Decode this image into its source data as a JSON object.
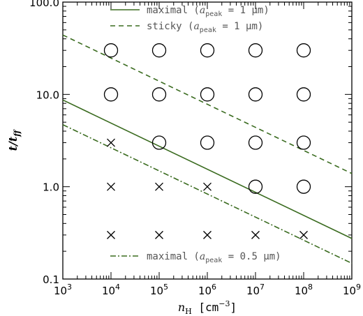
{
  "chart_data": {
    "type": "scatter",
    "xlabel": "n_H [cm^-3]",
    "ylabel": "t/t_ff",
    "xscale": "log",
    "yscale": "log",
    "xlim": [
      1000,
      1000000000
    ],
    "ylim": [
      0.1,
      100.0
    ],
    "grid": false,
    "x_ticks": [
      {
        "value": 1000,
        "mantissa": "10",
        "exp": "3"
      },
      {
        "value": 10000,
        "mantissa": "10",
        "exp": "4"
      },
      {
        "value": 100000,
        "mantissa": "10",
        "exp": "5"
      },
      {
        "value": 1000000,
        "mantissa": "10",
        "exp": "6"
      },
      {
        "value": 10000000,
        "mantissa": "10",
        "exp": "7"
      },
      {
        "value": 100000000,
        "mantissa": "10",
        "exp": "8"
      },
      {
        "value": 1000000000,
        "mantissa": "10",
        "exp": "9"
      }
    ],
    "y_ticks": [
      {
        "value": 0.1,
        "label": "0.1"
      },
      {
        "value": 1.0,
        "label": "1.0"
      },
      {
        "value": 10.0,
        "label": "10.0"
      },
      {
        "value": 100.0,
        "label": "100.0"
      }
    ],
    "lines": [
      {
        "name": "maximal (a_peak = 1 μm)",
        "style": "solid",
        "color": "#3a6b1f",
        "x": [
          1000,
          1000000000
        ],
        "y": [
          8.7,
          0.275
        ]
      },
      {
        "name": "sticky (a_peak = 1 μm)",
        "style": "dashed",
        "color": "#3a6b1f",
        "x": [
          1000,
          1000000000
        ],
        "y": [
          44.0,
          1.39
        ]
      },
      {
        "name": "maximal (a_peak = 0.5 μm)",
        "style": "dashdot",
        "color": "#3a6b1f",
        "x": [
          1000,
          1000000000
        ],
        "y": [
          4.7,
          0.148
        ]
      }
    ],
    "circles": {
      "marker": "circle",
      "points": [
        [
          10000,
          30
        ],
        [
          100000,
          30
        ],
        [
          1000000,
          30
        ],
        [
          10000000,
          30
        ],
        [
          100000000,
          30
        ],
        [
          10000,
          10
        ],
        [
          100000,
          10
        ],
        [
          1000000,
          10
        ],
        [
          10000000,
          10
        ],
        [
          100000000,
          10
        ],
        [
          100000,
          3
        ],
        [
          1000000,
          3
        ],
        [
          10000000,
          3
        ],
        [
          100000000,
          3
        ],
        [
          10000000,
          1
        ],
        [
          100000000,
          1
        ]
      ]
    },
    "crosses": {
      "marker": "x",
      "points": [
        [
          10000,
          3
        ],
        [
          10000,
          1
        ],
        [
          100000,
          1
        ],
        [
          1000000,
          1
        ],
        [
          10000,
          0.3
        ],
        [
          100000,
          0.3
        ],
        [
          1000000,
          0.3
        ],
        [
          10000000,
          0.3
        ],
        [
          100000000,
          0.3
        ]
      ]
    },
    "legend": [
      {
        "placement": "top",
        "style": "solid",
        "prefix": "maximal (",
        "a": "a",
        "sub": "peak",
        "suffix": " = 1 μm)"
      },
      {
        "placement": "top",
        "style": "dashed",
        "prefix": "sticky (",
        "a": "a",
        "sub": "peak",
        "suffix": " = 1 μm)"
      },
      {
        "placement": "bottom",
        "style": "dashdot",
        "prefix": "maximal (",
        "a": "a",
        "sub": "peak",
        "suffix": " = 0.5 μm)"
      }
    ],
    "axis_text": {
      "x_main": "n",
      "x_sub": "H",
      "x_unit": " [cm",
      "x_exp": "−3",
      "x_close": "]",
      "y_t": "t/t",
      "y_sub": "ff"
    }
  }
}
